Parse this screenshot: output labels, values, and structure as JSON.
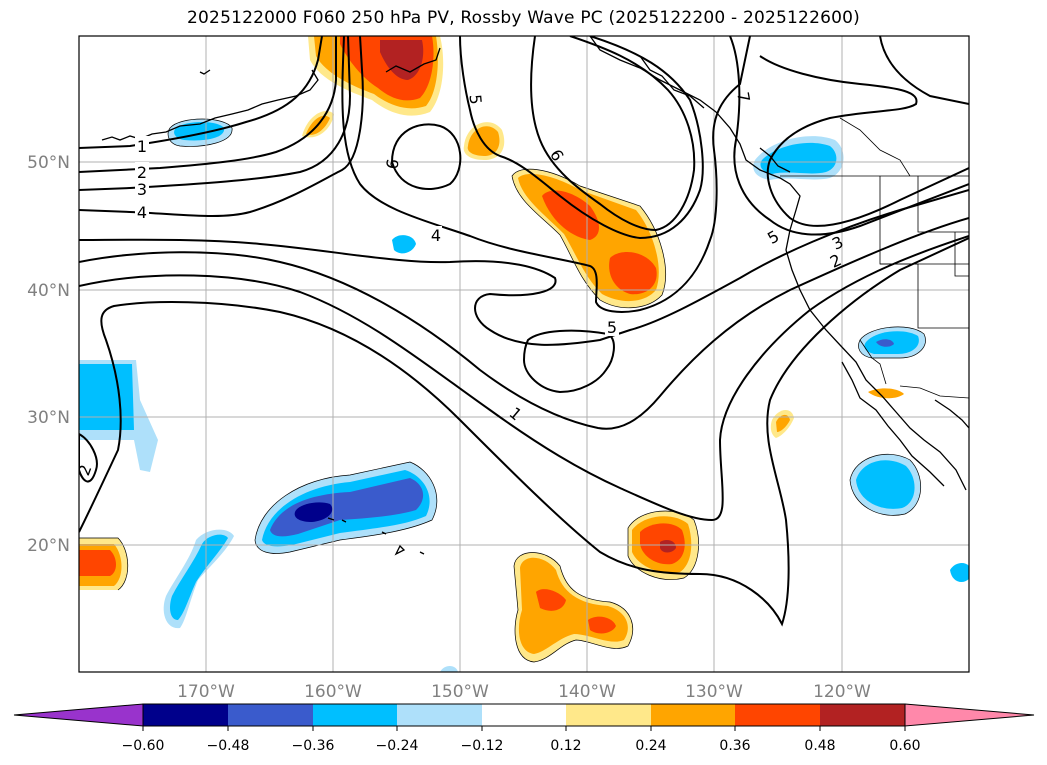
{
  "title": "2025122000 F060 250 hPa PV, Rossby Wave PC (2025122200 - 2025122600)",
  "map": {
    "lon_labels": [
      "170°W",
      "160°W",
      "150°W",
      "140°W",
      "130°W",
      "120°W"
    ],
    "lat_labels": [
      "50°N",
      "40°N",
      "30°N",
      "20°N"
    ],
    "contour_labels": [
      "1",
      "2",
      "3",
      "4",
      "6",
      "5",
      "4",
      "6",
      "5",
      "7",
      "5",
      "3",
      "2",
      "5",
      "1",
      "2"
    ]
  },
  "colorbar": {
    "ticks": [
      "−0.60",
      "−0.48",
      "−0.36",
      "−0.24",
      "−0.12",
      "0.12",
      "0.24",
      "0.36",
      "0.48",
      "0.60"
    ],
    "colors": [
      "#9933cc",
      "#00008b",
      "#3a5bcc",
      "#00bfff",
      "#aee0fa",
      "#ffffff",
      "#ffe88a",
      "#ffa500",
      "#ff4500",
      "#b22222",
      "#ff88aa"
    ]
  }
}
